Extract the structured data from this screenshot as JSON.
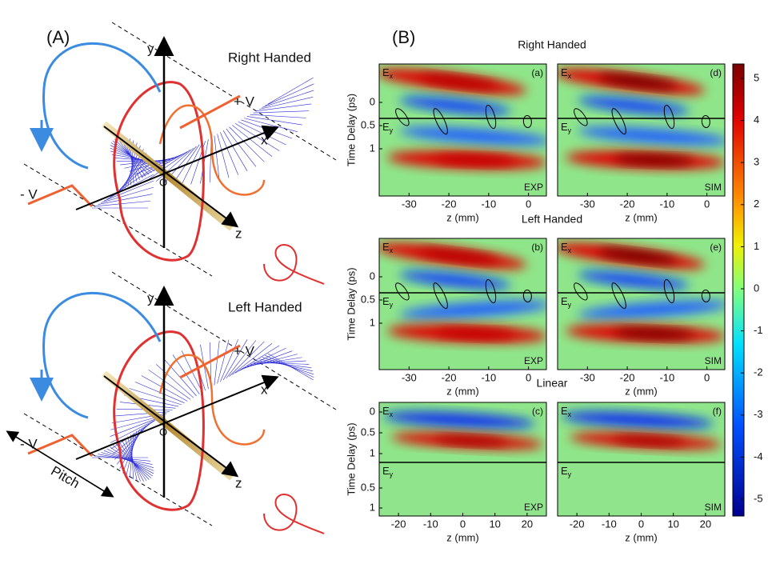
{
  "panel_a": {
    "label": "(A)",
    "top": {
      "title": "Right Handed",
      "axis_y": "y",
      "axis_x": "x",
      "axis_z": "z",
      "origin": "O",
      "plus": "+ V",
      "minus": "- V"
    },
    "bottom": {
      "title": "Left Handed",
      "axis_y": "y",
      "axis_x": "x",
      "axis_z": "z",
      "origin": "O",
      "plus": "+ V",
      "minus": "- V",
      "pitch": "Pitch"
    }
  },
  "panel_b": {
    "label": "(B)",
    "ylabel": "Time Delay (ps)",
    "xlabel": "z (mm)",
    "field_x": {
      "base": "E",
      "sub": "x"
    },
    "field_y": {
      "base": "E",
      "sub": "y"
    },
    "groups": [
      {
        "title": "Right Handed",
        "xticks": [
          -30,
          -20,
          -10,
          0
        ],
        "yticks": [
          0,
          0.5,
          1
        ],
        "plots": [
          {
            "tag": "(a)",
            "source": "EXP"
          },
          {
            "tag": "(d)",
            "source": "SIM"
          }
        ]
      },
      {
        "title": "Left Handed",
        "xticks": [
          -30,
          -20,
          -10,
          0
        ],
        "yticks": [
          0,
          0.5,
          1
        ],
        "plots": [
          {
            "tag": "(b)",
            "source": "EXP"
          },
          {
            "tag": "(e)",
            "source": "SIM"
          }
        ]
      },
      {
        "title": "Linear",
        "xticks": [
          -20,
          -10,
          0,
          10,
          20
        ],
        "yticks": [
          0,
          0.5,
          1
        ],
        "yticks_lower": [
          0.5,
          1
        ],
        "plots": [
          {
            "tag": "(c)",
            "source": "EXP"
          },
          {
            "tag": "(f)",
            "source": "SIM"
          }
        ]
      }
    ],
    "colorbar_ticks": [
      5,
      4,
      3,
      2,
      1,
      0,
      -1,
      -2,
      -3,
      -4,
      -5
    ]
  }
}
